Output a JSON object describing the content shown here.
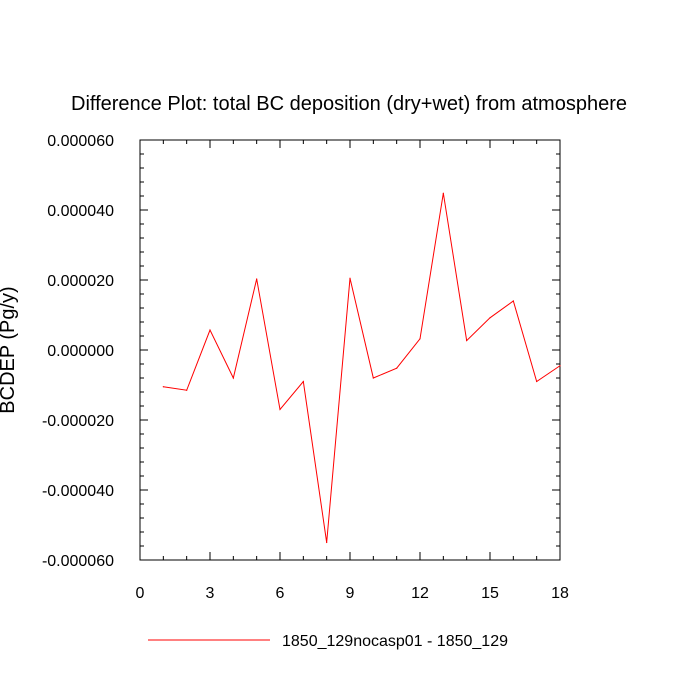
{
  "chart_data": {
    "type": "line",
    "title": "Difference Plot: total BC deposition (dry+wet) from atmosphere",
    "xlabel": "",
    "ylabel": "BCDEP  (Pg/y)",
    "xlim": [
      0,
      18
    ],
    "ylim": [
      -6e-05,
      6e-05
    ],
    "x_ticks": [
      0,
      3,
      6,
      9,
      12,
      15,
      18
    ],
    "x_tick_labels": [
      "0",
      "3",
      "6",
      "9",
      "12",
      "15",
      "18"
    ],
    "y_ticks": [
      -6e-05,
      -4e-05,
      -2e-05,
      0,
      2e-05,
      4e-05,
      6e-05
    ],
    "y_tick_labels": [
      "-0.000060",
      "-0.000040",
      "-0.000020",
      "0.000000",
      "0.000020",
      "0.000040",
      "0.000060"
    ],
    "grid": false,
    "legend": "bottom",
    "series": [
      {
        "name": "1850_129nocasp01 - 1850_129",
        "color": "#ff0000",
        "x": [
          1,
          2,
          3,
          4,
          5,
          6,
          7,
          8,
          9,
          10,
          11,
          12,
          13,
          14,
          15,
          16,
          17,
          18
        ],
        "values": [
          -1.05e-05,
          -1.15e-05,
          5.7e-06,
          -8e-06,
          2.03e-05,
          -1.7e-05,
          -9e-06,
          -5.5e-05,
          2.05e-05,
          -8e-06,
          -5.2e-06,
          3.2e-06,
          4.48e-05,
          2.7e-06,
          9.2e-06,
          1.4e-05,
          -9e-06,
          -4.5e-06
        ]
      }
    ]
  }
}
